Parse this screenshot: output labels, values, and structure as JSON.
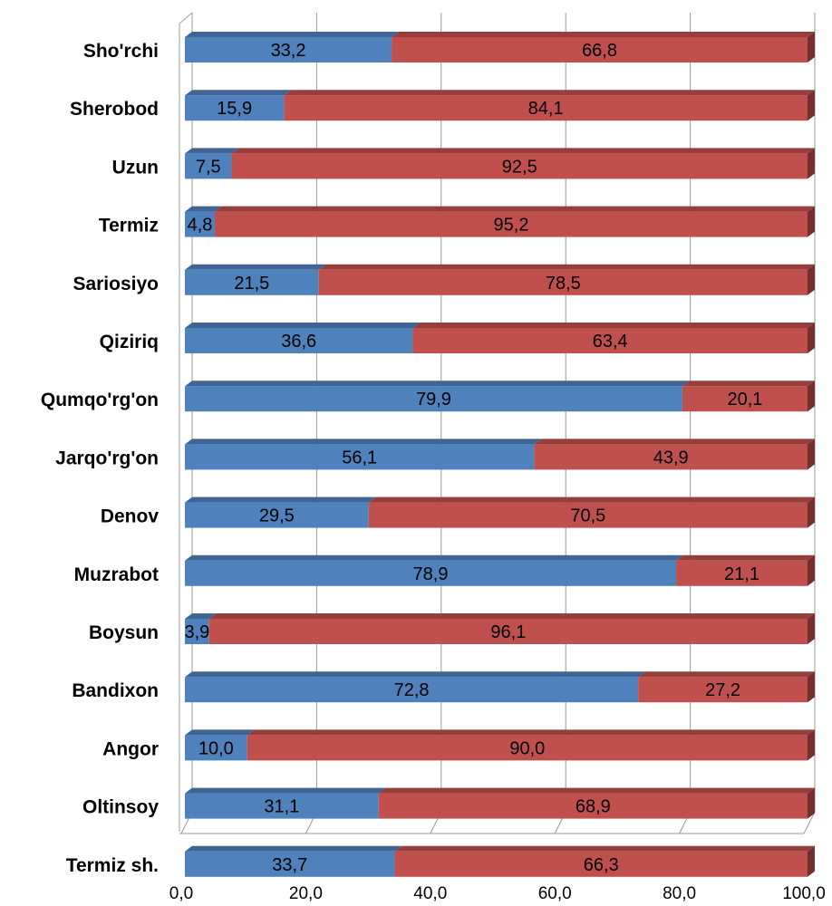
{
  "chart_data": {
    "type": "bar",
    "orientation": "horizontal",
    "stacked": true,
    "style_3d": true,
    "categories": [
      "Sho'rchi",
      "Sherobod",
      "Uzun",
      "Termiz",
      "Sariosiyo",
      "Qiziriq",
      "Qumqo'rg'on",
      "Jarqo'rg'on",
      "Denov",
      "Muzrabot",
      "Boysun",
      "Bandixon",
      "Angor",
      "Oltinsoy",
      "Termiz sh."
    ],
    "series": [
      {
        "color": "#4f81bd",
        "values": [
          33.2,
          15.9,
          7.5,
          4.8,
          21.5,
          36.6,
          79.9,
          56.1,
          29.5,
          78.9,
          3.9,
          72.8,
          10.0,
          31.1,
          33.7
        ],
        "labels": [
          "33,2",
          "15,9",
          "7,5",
          "4,8",
          "21,5",
          "36,6",
          "79,9",
          "56,1",
          "29,5",
          "78,9",
          "3,9",
          "72,8",
          "10,0",
          "31,1",
          "33,7"
        ]
      },
      {
        "color": "#c0504d",
        "values": [
          66.8,
          84.1,
          92.5,
          95.2,
          78.5,
          63.4,
          20.1,
          43.9,
          70.5,
          21.1,
          96.1,
          27.2,
          90.0,
          68.9,
          66.3
        ],
        "labels": [
          "66,8",
          "84,1",
          "92,5",
          "95,2",
          "78,5",
          "63,4",
          "20,1",
          "43,9",
          "70,5",
          "21,1",
          "96,1",
          "27,2",
          "90,0",
          "68,9",
          "66,3"
        ]
      }
    ],
    "xlim": [
      0,
      100
    ],
    "x_ticks": [
      0,
      20,
      40,
      60,
      80,
      100
    ],
    "x_tick_labels": [
      "0,0",
      "20,0",
      "40,0",
      "60,0",
      "80,0",
      "100,0"
    ],
    "grid": true,
    "legend": "none",
    "title": "",
    "xlabel": "",
    "ylabel": ""
  }
}
